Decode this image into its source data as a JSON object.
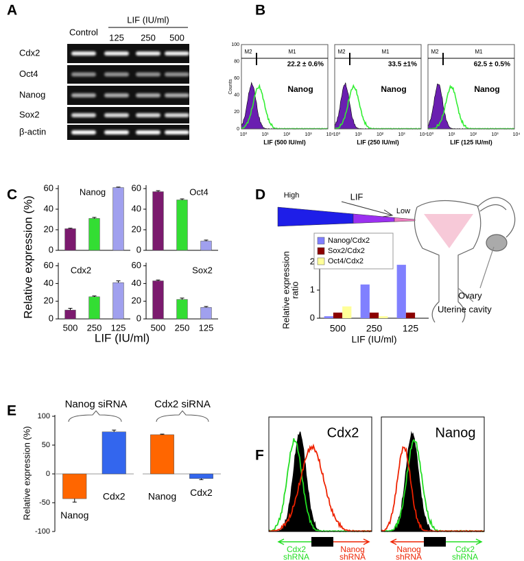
{
  "panel_a": {
    "label": "A",
    "lif_header": "LIF (IU/ml)",
    "lanes": [
      "Control",
      "125",
      "250",
      "500"
    ],
    "genes": [
      "Cdx2",
      "Oct4",
      "Nanog",
      "Sox2",
      "β-actin"
    ]
  },
  "panel_b": {
    "label": "B",
    "y_axis_label": "Counts",
    "y_ticks": [
      "0",
      "20",
      "40",
      "60",
      "80",
      "100"
    ],
    "x_ticks": [
      "10⁰",
      "10¹",
      "10²",
      "10³",
      "10⁴"
    ],
    "plots": [
      {
        "m2": "M2",
        "m1": "M1",
        "percent": "22.2 ± 0.6%",
        "marker": "Nanog",
        "x_label": "LIF (500 IU/ml)"
      },
      {
        "m2": "M2",
        "m1": "M1",
        "percent": "33.5 ±1%",
        "marker": "Nanog",
        "x_label": "LIF (250 IU/ml)"
      },
      {
        "m2": "M2",
        "m1": "M1",
        "percent": "62.5 ± 0.5%",
        "marker": "Nanog",
        "x_label": "LIF (125 IU/ml)"
      }
    ]
  },
  "panel_c": {
    "label": "C",
    "y_label": "Relative expression (%)",
    "x_label": "LIF (IU/ml)"
  },
  "panel_d": {
    "label": "D",
    "high": "High",
    "lif": "LIF",
    "low": "Low",
    "ovary": "Ovary",
    "uterine_cavity": "Uterine cavity"
  },
  "panel_e": {
    "label": "E",
    "y_label": "Relative expression (%)"
  },
  "panel_f": {
    "label": "F",
    "plots": [
      {
        "title": "Cdx2",
        "left": [
          "Cdx2",
          "shRNA"
        ],
        "right": [
          "Nanog",
          "shRNA"
        ]
      },
      {
        "title": "Nanog",
        "left": [
          "Nanog",
          "shRNA"
        ],
        "right": [
          "Cdx2",
          "shRNA"
        ]
      }
    ]
  },
  "chart_data": [
    {
      "type": "bar",
      "title": "Nanog",
      "categories": [
        null,
        null,
        null
      ],
      "values": [
        21,
        31,
        61
      ],
      "errors": [
        0.5,
        1,
        0.5
      ],
      "colors": [
        "#7b1a6e",
        "#33dd33",
        "#a0a0ee"
      ],
      "ylim": [
        0,
        62
      ],
      "yticks": [
        0,
        20,
        40,
        60
      ]
    },
    {
      "type": "bar",
      "title": "Oct4",
      "categories": [
        null,
        null,
        null
      ],
      "values": [
        57,
        49,
        9
      ],
      "errors": [
        1,
        1,
        1
      ],
      "colors": [
        "#7b1a6e",
        "#33dd33",
        "#a0a0ee"
      ],
      "ylim": [
        0,
        62
      ],
      "yticks": [
        0,
        20,
        40,
        60
      ]
    },
    {
      "type": "bar",
      "title": "Cdx2",
      "categories": [
        "500",
        "250",
        "125"
      ],
      "values": [
        10,
        25,
        41
      ],
      "errors": [
        2,
        1,
        2
      ],
      "colors": [
        "#7b1a6e",
        "#33dd33",
        "#a0a0ee"
      ],
      "ylim": [
        0,
        62
      ],
      "yticks": [
        0,
        20,
        40,
        60
      ]
    },
    {
      "type": "bar",
      "title": "Sox2",
      "categories": [
        "500",
        "250",
        "125"
      ],
      "values": [
        43,
        22,
        13
      ],
      "errors": [
        1,
        1.5,
        1
      ],
      "colors": [
        "#7b1a6e",
        "#33dd33",
        "#a0a0ee"
      ],
      "ylim": [
        0,
        62
      ],
      "yticks": [
        0,
        20,
        40,
        60
      ]
    },
    {
      "type": "grouped_bar",
      "categories": [
        "500",
        "250",
        "125"
      ],
      "x_label": "LIF (IU/ml)",
      "y_label": [
        "Relative expression",
        "ratio"
      ],
      "legend": "upper left",
      "series": [
        {
          "name": "Nanog/Cdx2",
          "color": "#8080ff",
          "values": [
            0.07,
            1.2,
            1.9
          ]
        },
        {
          "name": "Sox2/Cdx2",
          "color": "#8b0000",
          "values": [
            0.2,
            0.2,
            0.2
          ]
        },
        {
          "name": "Oct4/Cdx2",
          "color": "#ffff99",
          "values": [
            0.42,
            0.07,
            0
          ]
        }
      ],
      "ylim": [
        0,
        2
      ],
      "yticks": [
        0,
        1,
        2
      ]
    },
    {
      "type": "bar",
      "title": "Nanog siRNA",
      "categories": [
        "Nanog",
        "Cdx2"
      ],
      "values": [
        -43,
        73
      ],
      "errors": [
        6,
        3
      ],
      "colors": [
        "#ff6600",
        "#3366ee"
      ],
      "ylim": [
        -100,
        100
      ],
      "yticks": [
        -100,
        -50,
        0,
        50,
        100
      ]
    },
    {
      "type": "bar",
      "title": "Cdx2 siRNA",
      "categories": [
        "Nanog",
        "Cdx2"
      ],
      "values": [
        68,
        -8
      ],
      "errors": [
        1,
        2
      ],
      "colors": [
        "#ff6600",
        "#3366ee"
      ],
      "ylim": [
        -100,
        100
      ]
    }
  ]
}
